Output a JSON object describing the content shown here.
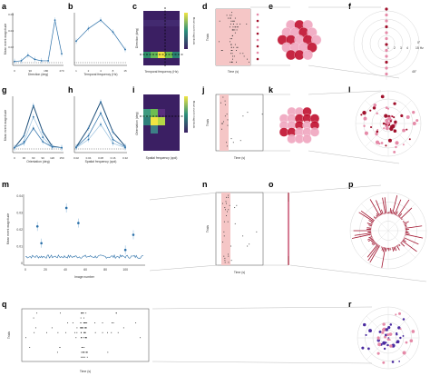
{
  "labels": {
    "a": "a",
    "b": "b",
    "c": "c",
    "d": "d",
    "e": "e",
    "f": "f",
    "g": "g",
    "h": "h",
    "i": "i",
    "j": "j",
    "k": "k",
    "l": "l",
    "m": "m",
    "n": "n",
    "o": "o",
    "p": "p",
    "q": "q",
    "r": "r"
  },
  "axes": {
    "a_x": "Direction (deg)",
    "a_y": "Mean event magnitude",
    "b_x": "Temporal frequency (Hz)",
    "c_x": "Temporal frequency (Hz)",
    "c_y": "Direction (deg)",
    "c_cb": "Mean event magnitude",
    "d_x": "Time (s)",
    "d_y": "Trials",
    "g_x": "Orientation (deg)",
    "g_y": "Mean event magnitude",
    "h_x": "Spatial frequency (cpd)",
    "i_x": "Spatial frequency (cpd)",
    "i_y": "Orientation (deg)",
    "i_cb": "Mean event magnitude",
    "j_x": "Time (s)",
    "j_y": "Trials",
    "m_x": "Image number",
    "m_y": "Mean event magnitude",
    "n_x": "Time (s)",
    "n_y": "Trials",
    "q_x": "Time (s)",
    "q_y": "Trials"
  },
  "polar": {
    "f_angle_0": "0°",
    "f_freq": "15 Hz",
    "f_angle_45": "45°",
    "f_rings": [
      "1",
      "2",
      "3",
      "4"
    ]
  },
  "colors": {
    "line_blue": "#2a6fa8",
    "light_blue": "#9cc3e0",
    "raster_shade": "#f5c6c6",
    "dark_red": "#a0112c",
    "pink": "#e58aa8",
    "heat_bg": "#3b1f63",
    "heat_hot": "#f0e442"
  },
  "chart_data": [
    {
      "id": "a",
      "type": "line",
      "xlabel": "Direction (deg)",
      "ylabel": "Mean event magnitude",
      "x": [
        0,
        45,
        90,
        135,
        180,
        225,
        270,
        315
      ],
      "values": [
        0.003,
        0.004,
        0.012,
        0.006,
        0.004,
        0.004,
        0.062,
        0.014
      ],
      "xticks": [
        "0",
        "90",
        "180",
        "270"
      ],
      "yticks": [
        "0.02",
        "0.04",
        "0.06"
      ]
    },
    {
      "id": "b",
      "type": "line",
      "xlabel": "Temporal frequency (Hz)",
      "x": [
        1,
        2,
        4,
        8,
        15
      ],
      "values": [
        0.032,
        0.05,
        0.062,
        0.045,
        0.02
      ],
      "xticks": [
        "1",
        "2",
        "4",
        "8",
        "15"
      ]
    },
    {
      "id": "g",
      "type": "line",
      "xlabel": "Orientation (deg)",
      "ylabel": "Mean event magnitude",
      "x": [
        0,
        30,
        60,
        90,
        120,
        150
      ],
      "series": [
        {
          "values": [
            0.004,
            0.01,
            0.03,
            0.012,
            0.005,
            0.004
          ]
        },
        {
          "values": [
            0.004,
            0.02,
            0.06,
            0.025,
            0.006,
            0.004
          ]
        },
        {
          "values": [
            0.004,
            0.012,
            0.045,
            0.018,
            0.005,
            0.004
          ]
        }
      ],
      "xticks": [
        "0",
        "30",
        "60",
        "90",
        "120",
        "150"
      ]
    },
    {
      "id": "h",
      "type": "line",
      "xlabel": "Spatial frequency (cpd)",
      "x": [
        0.02,
        0.04,
        0.08,
        0.16,
        0.32
      ],
      "series": [
        {
          "values": [
            0.005,
            0.02,
            0.05,
            0.015,
            0.005
          ]
        },
        {
          "values": [
            0.005,
            0.03,
            0.065,
            0.025,
            0.006
          ]
        },
        {
          "values": [
            0.004,
            0.015,
            0.035,
            0.01,
            0.004
          ]
        }
      ],
      "xticks": [
        "0.02",
        "0.04",
        "0.08",
        "0.16",
        "0.32"
      ]
    },
    {
      "id": "m",
      "type": "scatter",
      "xlabel": "Image number",
      "ylabel": "Mean event magnitude",
      "ylim": [
        0,
        0.04
      ],
      "yticks": [
        "0",
        "0.01",
        "0.02",
        "0.03",
        "0.04"
      ],
      "xticks": [
        "0",
        "20",
        "40",
        "60",
        "80",
        "100"
      ],
      "highlight": [
        {
          "x": 12,
          "y": 0.022
        },
        {
          "x": 16,
          "y": 0.012
        },
        {
          "x": 41,
          "y": 0.033
        },
        {
          "x": 53,
          "y": 0.024
        },
        {
          "x": 100,
          "y": 0.008
        },
        {
          "x": 108,
          "y": 0.017
        }
      ]
    }
  ]
}
